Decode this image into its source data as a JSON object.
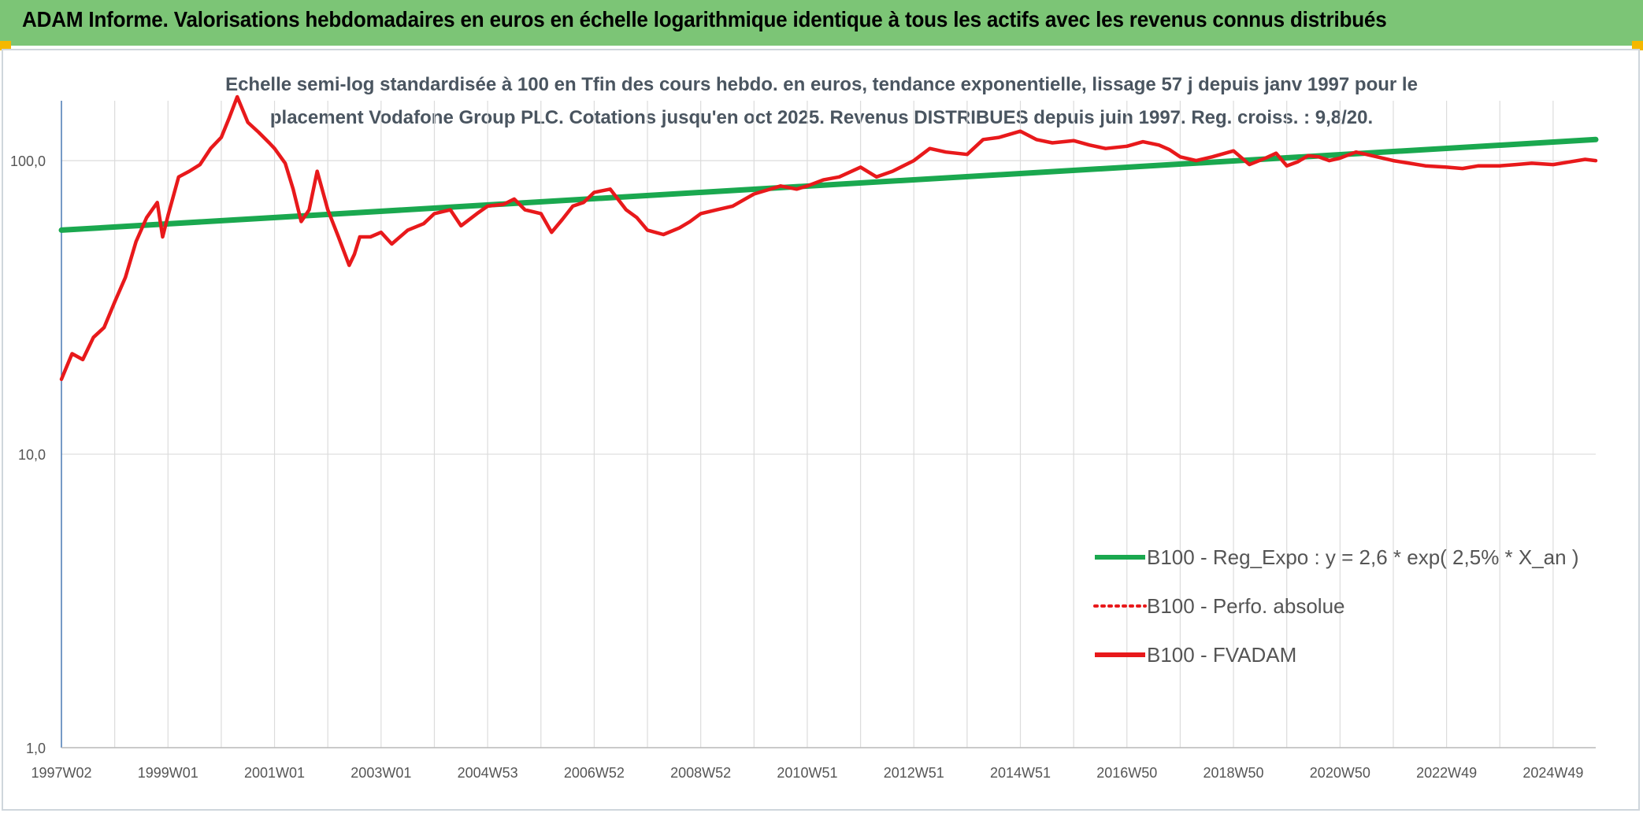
{
  "banner": {
    "title": "ADAM Informe. Valorisations hebdomadaires en euros en échelle logarithmique identique à tous les actifs avec les revenus connus distribués",
    "color": "#7cc576",
    "corner_color": "#f5b800"
  },
  "chart_data": {
    "type": "line",
    "title_lines": [
      "Echelle semi-log standardisée à 100 en Tfin des cours hebdo. en euros, tendance exponentielle, lissage 57 j depuis janv 1997 pour le",
      "placement Vodafone Group PLC. Cotations jusqu'en oct 2025. Revenus DISTRIBUES depuis juin 1997. Reg. croiss. : 9,8/20."
    ],
    "y_scale": "log",
    "ylim": [
      1,
      160
    ],
    "y_ticks": [
      {
        "value": 1,
        "label": "1,0"
      },
      {
        "value": 10,
        "label": "10,0"
      },
      {
        "value": 100,
        "label": "100,0"
      }
    ],
    "xlim": [
      1997.0,
      2025.8
    ],
    "x_ticks": [
      {
        "x": 1997.0,
        "label": "1997W02"
      },
      {
        "x": 1999.0,
        "label": "1999W01"
      },
      {
        "x": 2001.0,
        "label": "2001W01"
      },
      {
        "x": 2003.0,
        "label": "2003W01"
      },
      {
        "x": 2005.0,
        "label": "2004W53"
      },
      {
        "x": 2007.0,
        "label": "2006W52"
      },
      {
        "x": 2009.0,
        "label": "2008W52"
      },
      {
        "x": 2011.0,
        "label": "2010W51"
      },
      {
        "x": 2013.0,
        "label": "2012W51"
      },
      {
        "x": 2015.0,
        "label": "2014W51"
      },
      {
        "x": 2017.0,
        "label": "2016W50"
      },
      {
        "x": 2019.0,
        "label": "2018W50"
      },
      {
        "x": 2021.0,
        "label": "2020W50"
      },
      {
        "x": 2023.0,
        "label": "2022W49"
      },
      {
        "x": 2025.0,
        "label": "2024W49"
      }
    ],
    "grid": "vertical-and-horizontal",
    "legend_position": "bottom-right",
    "series": [
      {
        "name": "B100 - Reg_Expo : y = 2,6 * exp( 2,5% *  X_an )",
        "color": "#1aa84f",
        "style": "solid",
        "x": [
          1997.0,
          2025.8
        ],
        "y": [
          58,
          118
        ]
      },
      {
        "name": "B100 - Perfo. absolue",
        "color": "#e8191b",
        "style": "dotted",
        "x": [],
        "y": []
      },
      {
        "name": "B100 - FVADAM",
        "color": "#e8191b",
        "style": "solid",
        "x": [
          1997.0,
          1997.2,
          1997.4,
          1997.6,
          1997.8,
          1998.0,
          1998.2,
          1998.4,
          1998.6,
          1998.8,
          1998.9,
          1999.0,
          1999.2,
          1999.4,
          1999.6,
          1999.8,
          2000.0,
          2000.15,
          2000.3,
          2000.5,
          2000.7,
          2000.9,
          2001.0,
          2001.2,
          2001.35,
          2001.5,
          2001.65,
          2001.8,
          2002.0,
          2002.2,
          2002.4,
          2002.5,
          2002.6,
          2002.8,
          2003.0,
          2003.2,
          2003.5,
          2003.8,
          2004.0,
          2004.3,
          2004.5,
          2004.8,
          2005.0,
          2005.3,
          2005.5,
          2005.7,
          2006.0,
          2006.2,
          2006.4,
          2006.6,
          2006.8,
          2007.0,
          2007.3,
          2007.6,
          2007.8,
          2008.0,
          2008.3,
          2008.6,
          2008.8,
          2009.0,
          2009.3,
          2009.6,
          2010.0,
          2010.5,
          2010.8,
          2011.0,
          2011.3,
          2011.6,
          2012.0,
          2012.3,
          2012.6,
          2013.0,
          2013.3,
          2013.6,
          2014.0,
          2014.3,
          2014.6,
          2015.0,
          2015.3,
          2015.6,
          2016.0,
          2016.3,
          2016.6,
          2017.0,
          2017.3,
          2017.6,
          2017.8,
          2018.0,
          2018.3,
          2018.6,
          2019.0,
          2019.3,
          2019.6,
          2019.8,
          2020.0,
          2020.2,
          2020.4,
          2020.6,
          2020.8,
          2021.0,
          2021.3,
          2021.6,
          2022.0,
          2022.3,
          2022.6,
          2023.0,
          2023.3,
          2023.6,
          2024.0,
          2024.3,
          2024.6,
          2025.0,
          2025.3,
          2025.6,
          2025.8
        ],
        "y": [
          18,
          22,
          21,
          25,
          27,
          33,
          40,
          53,
          64,
          72,
          55,
          65,
          88,
          92,
          97,
          110,
          120,
          140,
          165,
          135,
          125,
          115,
          110,
          98,
          80,
          62,
          68,
          92,
          68,
          55,
          44,
          48,
          55,
          55,
          57,
          52,
          58,
          61,
          66,
          68,
          60,
          66,
          70,
          71,
          74,
          68,
          66,
          57,
          63,
          70,
          72,
          78,
          80,
          68,
          64,
          58,
          56,
          59,
          62,
          66,
          68,
          70,
          77,
          82,
          80,
          82,
          86,
          88,
          95,
          88,
          92,
          100,
          110,
          107,
          105,
          118,
          120,
          126,
          118,
          115,
          117,
          113,
          110,
          112,
          116,
          113,
          109,
          103,
          100,
          103,
          108,
          97,
          102,
          106,
          96,
          99,
          104,
          103,
          100,
          102,
          107,
          104,
          100,
          98,
          96,
          95,
          94,
          96,
          96,
          97,
          98,
          97,
          99,
          101,
          100
        ]
      }
    ]
  }
}
